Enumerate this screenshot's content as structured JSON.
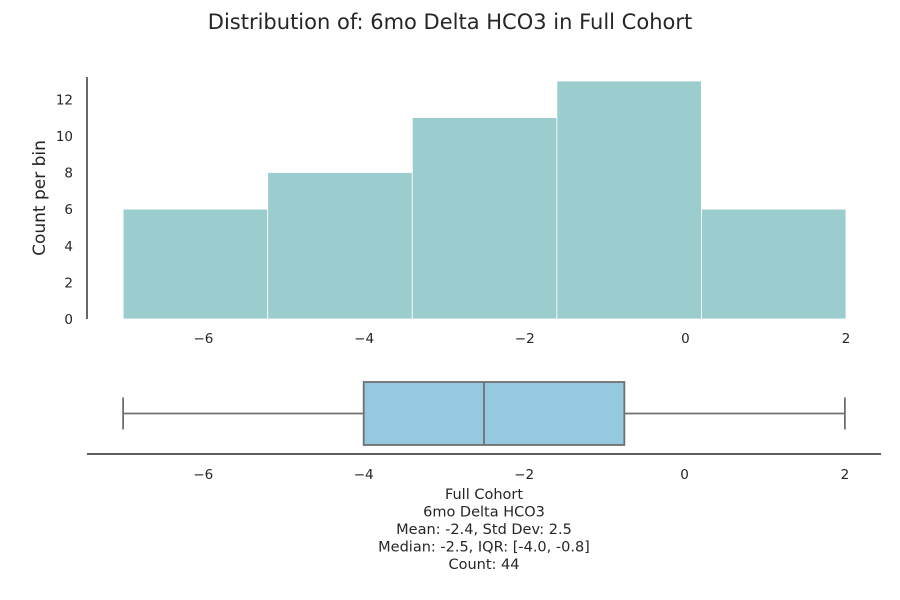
{
  "chart_data": [
    {
      "type": "histogram",
      "title": "Distribution of: 6mo Delta HCO3 in Full Cohort",
      "ylabel": "Count per bin",
      "xlabel": "",
      "bin_edges": [
        -7.0,
        -5.2,
        -3.4,
        -1.6,
        0.2,
        2.0
      ],
      "counts": [
        6,
        8,
        11,
        13,
        6
      ],
      "xlim": [
        -7.45,
        2.0
      ],
      "ylim": [
        0,
        13.6
      ],
      "xticks": [
        -6,
        -4,
        -2,
        0,
        2
      ],
      "xtick_labels": [
        "−6",
        "−4",
        "−2",
        "0",
        "2"
      ],
      "yticks": [
        0,
        2,
        4,
        6,
        8,
        10,
        12
      ],
      "ytick_labels": [
        "0",
        "2",
        "4",
        "6",
        "8",
        "10",
        "12"
      ],
      "bar_color": "#9bcdce",
      "grid": false
    },
    {
      "type": "box",
      "orientation": "horizontal",
      "whisker_low": -7.0,
      "q1": -4.0,
      "median": -2.5,
      "q3": -0.75,
      "whisker_high": 2.0,
      "xlim": [
        -7.45,
        2.45
      ],
      "xticks": [
        -6,
        -4,
        -2,
        0,
        2
      ],
      "xtick_labels": [
        "−6",
        "−4",
        "−2",
        "0",
        "2"
      ],
      "box_color": "#94c9e0",
      "line_color": "#707070",
      "stats_text": [
        "Full Cohort",
        "6mo Delta HCO3",
        "Mean: -2.4, Std Dev: 2.5",
        "Median: -2.5, IQR: [-4.0, -0.8]",
        "Count: 44"
      ]
    }
  ]
}
